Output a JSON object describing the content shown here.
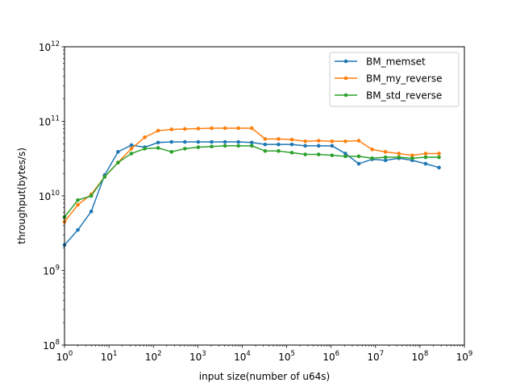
{
  "chart_data": {
    "type": "line",
    "xlabel": "input size(number of u64s)",
    "ylabel": "throughput(bytes/s)",
    "x_scale": "log",
    "y_scale": "log",
    "xlim": [
      1,
      1000000000
    ],
    "ylim": [
      100000000,
      1000000000000
    ],
    "x_ticks": [
      {
        "value": 1,
        "mant": "10",
        "exp": "0"
      },
      {
        "value": 10,
        "mant": "10",
        "exp": "1"
      },
      {
        "value": 100,
        "mant": "10",
        "exp": "2"
      },
      {
        "value": 1000,
        "mant": "10",
        "exp": "3"
      },
      {
        "value": 10000,
        "mant": "10",
        "exp": "4"
      },
      {
        "value": 100000,
        "mant": "10",
        "exp": "5"
      },
      {
        "value": 1000000,
        "mant": "10",
        "exp": "6"
      },
      {
        "value": 10000000,
        "mant": "10",
        "exp": "7"
      },
      {
        "value": 100000000,
        "mant": "10",
        "exp": "8"
      },
      {
        "value": 1000000000,
        "mant": "10",
        "exp": "9"
      }
    ],
    "y_ticks": [
      {
        "value": 100000000,
        "mant": "10",
        "exp": "8"
      },
      {
        "value": 1000000000,
        "mant": "10",
        "exp": "9"
      },
      {
        "value": 10000000000,
        "mant": "10",
        "exp": "10"
      },
      {
        "value": 100000000000,
        "mant": "10",
        "exp": "11"
      },
      {
        "value": 1000000000000,
        "mant": "10",
        "exp": "12"
      }
    ],
    "grid": false,
    "legend_position": "top-right",
    "x": [
      1,
      2,
      4,
      8,
      16,
      32,
      64,
      128,
      256,
      512,
      1024,
      2048,
      4096,
      8192,
      16384,
      32768,
      65536,
      131072,
      262144,
      524288,
      1048576,
      2097152,
      4194304,
      8388608,
      16777216,
      33554432,
      67108864,
      134217728,
      268435456
    ],
    "series": [
      {
        "name": "BM_memset",
        "color": "#1f77b4",
        "values": [
          2200000000,
          3500000000,
          6200000000,
          19000000000,
          39000000000,
          48000000000,
          45000000000,
          52000000000,
          53000000000,
          53000000000,
          53000000000,
          53000000000,
          53000000000,
          53000000000,
          52000000000,
          49000000000,
          49000000000,
          49000000000,
          47000000000,
          47000000000,
          47000000000,
          37000000000,
          27000000000,
          31000000000,
          30000000000,
          32000000000,
          30000000000,
          27000000000,
          24000000000
        ]
      },
      {
        "name": "BM_my_reverse",
        "color": "#ff7f0e",
        "values": [
          4500000000,
          7600000000,
          10500000000,
          18000000000,
          28000000000,
          43000000000,
          61000000000,
          75000000000,
          78000000000,
          79000000000,
          80000000000,
          81000000000,
          81000000000,
          81000000000,
          81000000000,
          58000000000,
          58000000000,
          57000000000,
          54000000000,
          55000000000,
          54000000000,
          54000000000,
          55000000000,
          42000000000,
          39000000000,
          37000000000,
          35000000000,
          37000000000,
          37000000000
        ]
      },
      {
        "name": "BM_std_reverse",
        "color": "#2ca02c",
        "values": [
          5200000000,
          8800000000,
          10000000000,
          18000000000,
          28000000000,
          37000000000,
          43000000000,
          44000000000,
          39000000000,
          43000000000,
          45000000000,
          46000000000,
          47000000000,
          47000000000,
          47000000000,
          40000000000,
          40000000000,
          38000000000,
          36000000000,
          36000000000,
          35000000000,
          34000000000,
          34000000000,
          32000000000,
          33000000000,
          33000000000,
          32000000000,
          33000000000,
          33000000000
        ]
      }
    ]
  }
}
